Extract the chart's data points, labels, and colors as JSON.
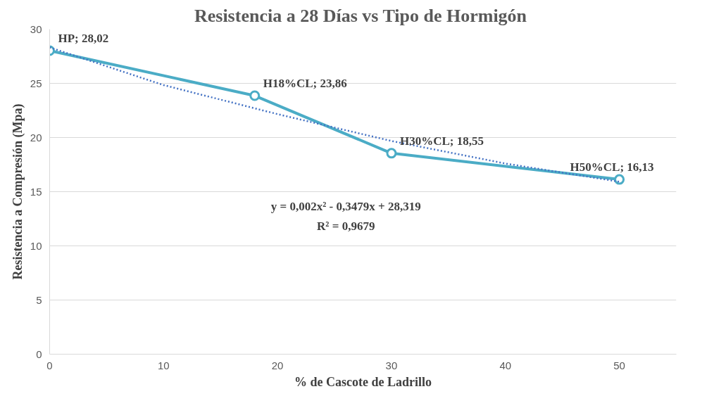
{
  "chart_data": {
    "type": "line",
    "title": "Resistencia a 28 Días vs  Tipo de Hormigón",
    "xlabel": "% de Cascote de Ladrillo",
    "ylabel": "Resistencia a Compresión (Mpa)",
    "xlim": [
      0,
      55
    ],
    "xticks": [
      0,
      10,
      20,
      30,
      40,
      50
    ],
    "ylim": [
      0,
      30
    ],
    "yticks": [
      0,
      5,
      10,
      15,
      20,
      25,
      30
    ],
    "grid": "y",
    "marker": "circle",
    "series": [
      {
        "color": "#4bacc6",
        "x": [
          0,
          18,
          30,
          50
        ],
        "values": [
          28.02,
          23.86,
          18.55,
          16.13
        ],
        "value_labels": [
          "HP; 28,02",
          "H18%CL; 23,86",
          "H30%CL; 18,55",
          "H50%CL; 16,13"
        ]
      },
      {
        "color": "#4472c4",
        "line_style": "dotted",
        "marker": "none",
        "x": [
          0,
          10,
          20,
          30,
          40,
          50
        ],
        "values": [
          28.32,
          24.84,
          22.16,
          19.68,
          17.6,
          15.92
        ]
      }
    ],
    "annotations": [
      {
        "text": "y = 0,002x² - 0,3479x + 28,319"
      },
      {
        "text": "R² = 0,9679"
      }
    ]
  }
}
